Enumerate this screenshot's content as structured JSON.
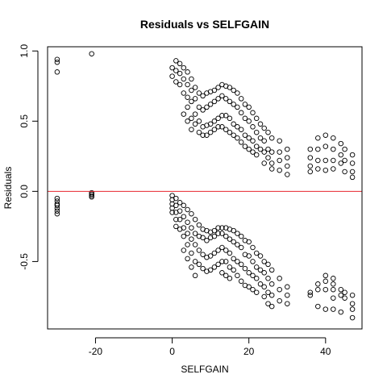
{
  "chart_data": {
    "type": "scatter",
    "title": "Residuals vs SELFGAIN",
    "xlabel": "SELFGAIN",
    "ylabel": "Residuals",
    "xlim": [
      -32.5,
      49.5
    ],
    "ylim": [
      -0.98,
      1.03
    ],
    "xticks": [
      -20,
      0,
      20,
      40
    ],
    "xtick_labels": [
      "-20",
      "0",
      "20",
      "40"
    ],
    "yticks": [
      -0.5,
      0.0,
      0.5,
      1.0
    ],
    "ytick_labels": [
      "-0.5",
      "0.0",
      "0.5",
      "1.0"
    ],
    "reference_line": {
      "y": 0,
      "color": "#e8262e"
    },
    "grid": false,
    "legend": "none",
    "series": [
      {
        "marker": "open-circle",
        "color": "#000000",
        "points": [
          [
            -30,
            0.94
          ],
          [
            -30,
            0.92
          ],
          [
            -30,
            0.85
          ],
          [
            -21,
            0.98
          ],
          [
            -30,
            -0.05
          ],
          [
            -30,
            -0.07
          ],
          [
            -30,
            -0.09
          ],
          [
            -30,
            -0.1
          ],
          [
            -30,
            -0.12
          ],
          [
            -30,
            -0.14
          ],
          [
            -30,
            -0.16
          ],
          [
            -21,
            -0.01
          ],
          [
            -21,
            -0.02
          ],
          [
            -21,
            -0.03
          ],
          [
            -21,
            -0.04
          ],
          [
            0,
            0.88
          ],
          [
            0,
            0.82
          ],
          [
            0,
            -0.03
          ],
          [
            0,
            -0.06
          ],
          [
            0,
            -0.09
          ],
          [
            0,
            -0.12
          ],
          [
            0,
            -0.15
          ],
          [
            1,
            0.93
          ],
          [
            1,
            0.86
          ],
          [
            1,
            0.78
          ],
          [
            1,
            -0.05
          ],
          [
            1,
            -0.1
          ],
          [
            1,
            -0.15
          ],
          [
            1,
            -0.2
          ],
          [
            1,
            -0.25
          ],
          [
            2,
            0.91
          ],
          [
            2,
            0.84
          ],
          [
            2,
            0.76
          ],
          [
            2,
            -0.08
          ],
          [
            2,
            -0.14
          ],
          [
            2,
            -0.2
          ],
          [
            2,
            -0.27
          ],
          [
            3,
            0.88
          ],
          [
            3,
            0.8
          ],
          [
            3,
            0.7
          ],
          [
            3,
            0.55
          ],
          [
            3,
            -0.1
          ],
          [
            3,
            -0.18
          ],
          [
            3,
            -0.26
          ],
          [
            3,
            -0.32
          ],
          [
            3,
            -0.42
          ],
          [
            4,
            0.85
          ],
          [
            4,
            0.76
          ],
          [
            4,
            0.67
          ],
          [
            4,
            0.6
          ],
          [
            4,
            0.5
          ],
          [
            4,
            -0.13
          ],
          [
            4,
            -0.22
          ],
          [
            4,
            -0.3
          ],
          [
            4,
            -0.38
          ],
          [
            4,
            -0.48
          ],
          [
            5,
            0.8
          ],
          [
            5,
            0.72
          ],
          [
            5,
            0.64
          ],
          [
            5,
            0.52
          ],
          [
            5,
            0.44
          ],
          [
            5,
            -0.16
          ],
          [
            5,
            -0.26
          ],
          [
            5,
            -0.34
          ],
          [
            5,
            -0.44
          ],
          [
            5,
            -0.54
          ],
          [
            6,
            0.74
          ],
          [
            6,
            0.66
          ],
          [
            6,
            0.55
          ],
          [
            6,
            0.48
          ],
          [
            6,
            -0.2
          ],
          [
            6,
            -0.3
          ],
          [
            6,
            -0.38
          ],
          [
            6,
            -0.5
          ],
          [
            6,
            -0.6
          ],
          [
            7,
            0.7
          ],
          [
            7,
            0.6
          ],
          [
            7,
            0.5
          ],
          [
            7,
            0.42
          ],
          [
            7,
            -0.24
          ],
          [
            7,
            -0.32
          ],
          [
            7,
            -0.42
          ],
          [
            7,
            -0.52
          ],
          [
            8,
            0.68
          ],
          [
            8,
            0.58
          ],
          [
            8,
            0.46
          ],
          [
            8,
            0.4
          ],
          [
            8,
            -0.27
          ],
          [
            8,
            -0.33
          ],
          [
            8,
            -0.45
          ],
          [
            8,
            -0.55
          ],
          [
            9,
            0.7
          ],
          [
            9,
            0.6
          ],
          [
            9,
            0.47
          ],
          [
            9,
            0.4
          ],
          [
            9,
            -0.28
          ],
          [
            9,
            -0.35
          ],
          [
            9,
            -0.47
          ],
          [
            9,
            -0.57
          ],
          [
            10,
            0.71
          ],
          [
            10,
            0.62
          ],
          [
            10,
            0.48
          ],
          [
            10,
            0.42
          ],
          [
            10,
            -0.29
          ],
          [
            10,
            -0.33
          ],
          [
            10,
            -0.46
          ],
          [
            10,
            -0.56
          ],
          [
            11,
            0.72
          ],
          [
            11,
            0.64
          ],
          [
            11,
            0.5
          ],
          [
            11,
            0.44
          ],
          [
            11,
            -0.28
          ],
          [
            11,
            -0.32
          ],
          [
            11,
            -0.44
          ],
          [
            11,
            -0.54
          ],
          [
            12,
            0.74
          ],
          [
            12,
            0.66
          ],
          [
            12,
            0.52
          ],
          [
            12,
            0.46
          ],
          [
            12,
            -0.26
          ],
          [
            12,
            -0.3
          ],
          [
            12,
            -0.42
          ],
          [
            12,
            -0.52
          ],
          [
            13,
            0.76
          ],
          [
            13,
            0.68
          ],
          [
            13,
            0.54
          ],
          [
            13,
            0.46
          ],
          [
            13,
            -0.26
          ],
          [
            13,
            -0.3
          ],
          [
            13,
            -0.4
          ],
          [
            13,
            -0.5
          ],
          [
            13,
            -0.58
          ],
          [
            14,
            0.75
          ],
          [
            14,
            0.66
          ],
          [
            14,
            0.54
          ],
          [
            14,
            0.44
          ],
          [
            14,
            -0.26
          ],
          [
            14,
            -0.32
          ],
          [
            14,
            -0.42
          ],
          [
            14,
            -0.5
          ],
          [
            14,
            -0.6
          ],
          [
            15,
            0.74
          ],
          [
            15,
            0.64
          ],
          [
            15,
            0.52
          ],
          [
            15,
            0.42
          ],
          [
            15,
            -0.27
          ],
          [
            15,
            -0.34
          ],
          [
            15,
            -0.44
          ],
          [
            15,
            -0.54
          ],
          [
            15,
            -0.62
          ],
          [
            16,
            0.72
          ],
          [
            16,
            0.62
          ],
          [
            16,
            0.48
          ],
          [
            16,
            0.4
          ],
          [
            16,
            -0.28
          ],
          [
            16,
            -0.36
          ],
          [
            16,
            -0.48
          ],
          [
            16,
            -0.56
          ],
          [
            17,
            0.7
          ],
          [
            17,
            0.6
          ],
          [
            17,
            0.46
          ],
          [
            17,
            0.38
          ],
          [
            17,
            -0.3
          ],
          [
            17,
            -0.38
          ],
          [
            17,
            -0.5
          ],
          [
            17,
            -0.6
          ],
          [
            18,
            0.66
          ],
          [
            18,
            0.56
          ],
          [
            18,
            0.44
          ],
          [
            18,
            0.35
          ],
          [
            18,
            -0.32
          ],
          [
            18,
            -0.4
          ],
          [
            18,
            -0.52
          ],
          [
            18,
            -0.64
          ],
          [
            19,
            0.62
          ],
          [
            19,
            0.52
          ],
          [
            19,
            0.4
          ],
          [
            19,
            0.32
          ],
          [
            19,
            -0.35
          ],
          [
            19,
            -0.45
          ],
          [
            19,
            -0.55
          ],
          [
            19,
            -0.67
          ],
          [
            20,
            0.6
          ],
          [
            20,
            0.5
          ],
          [
            20,
            0.38
          ],
          [
            20,
            0.3
          ],
          [
            20,
            -0.36
          ],
          [
            20,
            -0.46
          ],
          [
            20,
            -0.58
          ],
          [
            20,
            -0.68
          ],
          [
            21,
            0.56
          ],
          [
            21,
            0.46
          ],
          [
            21,
            0.36
          ],
          [
            21,
            0.28
          ],
          [
            21,
            -0.4
          ],
          [
            21,
            -0.5
          ],
          [
            21,
            -0.6
          ],
          [
            21,
            -0.7
          ],
          [
            22,
            0.52
          ],
          [
            22,
            0.42
          ],
          [
            22,
            0.32
          ],
          [
            22,
            0.26
          ],
          [
            22,
            -0.44
          ],
          [
            22,
            -0.54
          ],
          [
            22,
            -0.62
          ],
          [
            22,
            -0.72
          ],
          [
            23,
            0.48
          ],
          [
            23,
            0.38
          ],
          [
            23,
            0.3
          ],
          [
            23,
            -0.46
          ],
          [
            23,
            -0.56
          ],
          [
            23,
            -0.66
          ],
          [
            24,
            0.45
          ],
          [
            24,
            0.36
          ],
          [
            24,
            0.28
          ],
          [
            24,
            0.2
          ],
          [
            24,
            -0.5
          ],
          [
            24,
            -0.58
          ],
          [
            24,
            -0.68
          ],
          [
            24,
            -0.75
          ],
          [
            25,
            0.42
          ],
          [
            25,
            0.3
          ],
          [
            25,
            0.24
          ],
          [
            25,
            -0.52
          ],
          [
            25,
            -0.62
          ],
          [
            25,
            -0.72
          ],
          [
            25,
            -0.8
          ],
          [
            26,
            0.38
          ],
          [
            26,
            0.28
          ],
          [
            26,
            0.2
          ],
          [
            26,
            0.16
          ],
          [
            26,
            -0.56
          ],
          [
            26,
            -0.66
          ],
          [
            26,
            -0.74
          ],
          [
            26,
            -0.82
          ],
          [
            28,
            0.36
          ],
          [
            28,
            0.28
          ],
          [
            28,
            0.22
          ],
          [
            28,
            0.15
          ],
          [
            28,
            -0.62
          ],
          [
            28,
            -0.7
          ],
          [
            28,
            -0.78
          ],
          [
            30,
            0.3
          ],
          [
            30,
            0.24
          ],
          [
            30,
            0.18
          ],
          [
            30,
            0.12
          ],
          [
            30,
            -0.68
          ],
          [
            30,
            -0.74
          ],
          [
            30,
            -0.8
          ],
          [
            36,
            0.3
          ],
          [
            36,
            0.24
          ],
          [
            36,
            0.18
          ],
          [
            36,
            0.14
          ],
          [
            36,
            -0.72
          ],
          [
            36,
            -0.74
          ],
          [
            38,
            0.38
          ],
          [
            38,
            0.3
          ],
          [
            38,
            0.22
          ],
          [
            38,
            0.16
          ],
          [
            38,
            -0.66
          ],
          [
            38,
            -0.7
          ],
          [
            38,
            -0.82
          ],
          [
            40,
            0.4
          ],
          [
            40,
            0.32
          ],
          [
            40,
            0.22
          ],
          [
            40,
            0.15
          ],
          [
            40,
            -0.6
          ],
          [
            40,
            -0.64
          ],
          [
            40,
            -0.7
          ],
          [
            40,
            -0.84
          ],
          [
            42,
            0.38
          ],
          [
            42,
            0.3
          ],
          [
            42,
            0.22
          ],
          [
            42,
            0.16
          ],
          [
            42,
            -0.62
          ],
          [
            42,
            -0.66
          ],
          [
            42,
            -0.7
          ],
          [
            42,
            -0.76
          ],
          [
            42,
            -0.84
          ],
          [
            44,
            0.34
          ],
          [
            44,
            0.26
          ],
          [
            44,
            0.2
          ],
          [
            44,
            -0.7
          ],
          [
            44,
            -0.74
          ],
          [
            44,
            -0.86
          ],
          [
            45,
            0.3
          ],
          [
            45,
            0.22
          ],
          [
            45,
            0.14
          ],
          [
            45,
            -0.72
          ],
          [
            45,
            -0.76
          ],
          [
            47,
            0.26
          ],
          [
            47,
            0.2
          ],
          [
            47,
            0.14
          ],
          [
            47,
            0.1
          ],
          [
            47,
            -0.74
          ],
          [
            47,
            -0.8
          ],
          [
            47,
            -0.84
          ],
          [
            47,
            -0.9
          ]
        ]
      }
    ]
  }
}
